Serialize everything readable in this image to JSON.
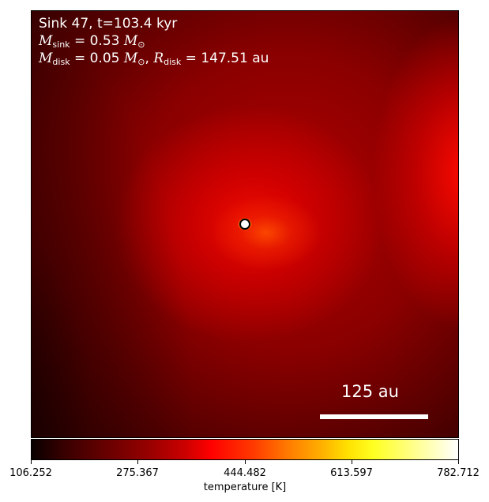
{
  "header": {
    "title_line": "Sink 47, t=103.4 kyr",
    "sink_mass_symbol": "M",
    "sink_mass_sub": "sink",
    "sink_mass_value": " = 0.53 ",
    "sink_mass_unit": "M",
    "sink_mass_unit_sub": "⊙",
    "disk_mass_symbol": "M",
    "disk_mass_sub": "disk",
    "disk_mass_value": " = 0.05 ",
    "disk_mass_unit": "M",
    "disk_mass_unit_sub": "⊙",
    "disk_radius_sep": ", ",
    "disk_radius_symbol": "R",
    "disk_radius_sub": "disk",
    "disk_radius_value": " = 147.51 au"
  },
  "scale_bar": {
    "label": "125 au"
  },
  "colorbar": {
    "colormap": "hot",
    "title": "temperature [K]",
    "min": 106.252,
    "max": 782.712,
    "ticks": [
      "106.252",
      "275.367",
      "444.482",
      "613.597",
      "782.712"
    ]
  },
  "colors": {
    "text_on_map": "#ffffff",
    "scale_bar": "#ffffff",
    "sink_marker_fill": "#ffffff",
    "sink_marker_edge": "#000000"
  }
}
